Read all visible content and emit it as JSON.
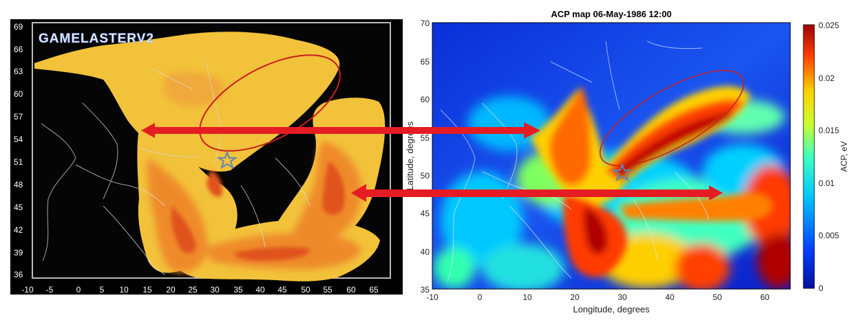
{
  "left_map": {
    "watermark": "GAMELASTERV2",
    "lat_ticks": [
      "69",
      "66",
      "63",
      "60",
      "57",
      "54",
      "51",
      "48",
      "45",
      "42",
      "39",
      "36"
    ],
    "lon_ticks": [
      "-10",
      "-5",
      "0",
      "5",
      "10",
      "15",
      "20",
      "25",
      "30",
      "35",
      "40",
      "45",
      "50",
      "55",
      "60",
      "65"
    ]
  },
  "right_map": {
    "title": "ACP map 06-May-1986 12:00",
    "xlabel": "Longitude, degrees",
    "ylabel": "Latitude, degrees",
    "lat_ticks": [
      "70",
      "65",
      "60",
      "55",
      "50",
      "45",
      "40",
      "35"
    ],
    "lon_ticks": [
      "-10",
      "0",
      "10",
      "20",
      "30",
      "40",
      "50",
      "60"
    ],
    "colorbar_label": "ACP, eV",
    "colorbar_ticks": [
      "0.025",
      "0.02",
      "0.015",
      "0.01",
      "0.005",
      "0"
    ]
  },
  "colors": {
    "plume_light": "#f2c23a",
    "plume_orange": "#ef8a2a",
    "plume_dark": "#e0521e",
    "arrow_red": "#e51c23",
    "ellipse_red": "#c91d1d",
    "star_blue": "#5f86b6"
  }
}
